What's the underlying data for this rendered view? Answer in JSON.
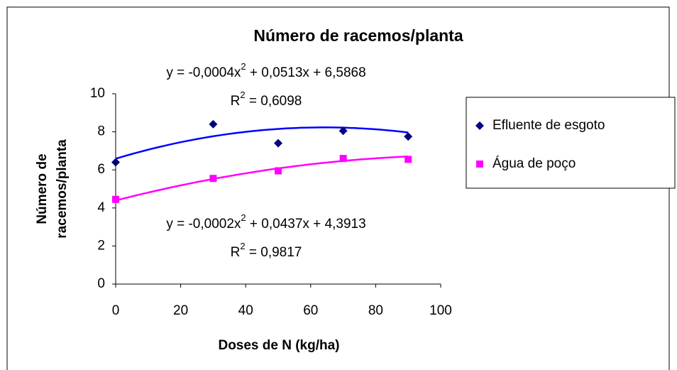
{
  "chart_data": {
    "type": "scatter",
    "title": "Número de racemos/planta",
    "x_label": "Doses de N (kg/ha)",
    "y_label": [
      "Número de",
      "racemos/planta"
    ],
    "xlim": [
      0,
      100
    ],
    "xticks": [
      0,
      20,
      40,
      60,
      80,
      100
    ],
    "ylim": [
      0,
      10
    ],
    "yticks": [
      0,
      2,
      4,
      6,
      8,
      10
    ],
    "grid": false,
    "legend": "right",
    "series": [
      {
        "name": "Efluente de esgoto",
        "color": "#000080",
        "marker": "diamond",
        "x": [
          0,
          30,
          50,
          70,
          90
        ],
        "values": [
          6.4,
          8.4,
          7.4,
          8.05,
          7.75
        ],
        "trendline": {
          "color": "#0000ff",
          "coefficients": [
            -0.0004,
            0.0513,
            6.5868
          ],
          "equation": [
            "y = -0,0004x",
            "2",
            " + 0,0513x + 6,5868"
          ],
          "r_squared": [
            "R",
            "2",
            " = 0,6098"
          ],
          "position": "above"
        }
      },
      {
        "name": "Água de poço",
        "color": "#ff00ff",
        "marker": "square",
        "x": [
          0,
          30,
          50,
          70,
          90
        ],
        "values": [
          4.45,
          5.55,
          5.95,
          6.6,
          6.55
        ],
        "trendline": {
          "color": "#ff00ff",
          "coefficients": [
            -0.0002,
            0.0437,
            4.3913
          ],
          "equation": [
            "y = -0,0002x",
            "2",
            " + 0,0437x + 4,3913"
          ],
          "r_squared": [
            "R",
            "2",
            " = 0,9817"
          ],
          "position": "below"
        }
      }
    ]
  }
}
